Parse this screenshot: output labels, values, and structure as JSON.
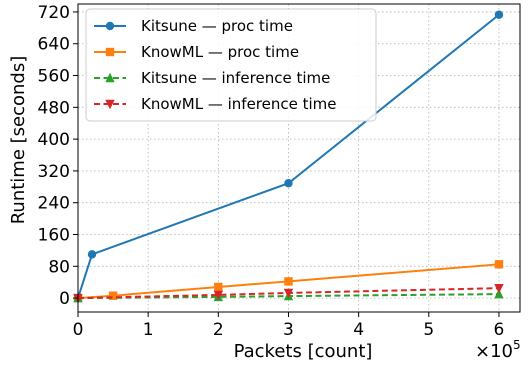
{
  "chart_data": {
    "type": "line",
    "title": "",
    "xlabel": "Packets [count]",
    "ylabel": "Runtime [seconds]",
    "x_multiplier_label": "×10",
    "x_multiplier_exponent": "5",
    "xlim": [
      0,
      6.3
    ],
    "ylim": [
      -35,
      740
    ],
    "xticks": [
      0,
      1,
      2,
      3,
      4,
      5,
      6
    ],
    "xtick_labels": [
      "0",
      "1",
      "2",
      "3",
      "4",
      "5",
      "6"
    ],
    "yticks": [
      0,
      80,
      160,
      240,
      320,
      400,
      480,
      560,
      640,
      720
    ],
    "ytick_labels": [
      "0",
      "80",
      "160",
      "240",
      "320",
      "400",
      "480",
      "560",
      "640",
      "720"
    ],
    "grid": true,
    "legend_position": "top-left",
    "series": [
      {
        "name": "Kitsune — proc time",
        "color": "#1f77b4",
        "marker": "circle",
        "dash": "solid",
        "x": [
          0,
          0.2,
          3,
          6
        ],
        "y": [
          0,
          110,
          289,
          713
        ]
      },
      {
        "name": "KnowML — proc time",
        "color": "#ff7f0e",
        "marker": "square",
        "dash": "solid",
        "x": [
          0,
          0.5,
          2,
          3,
          6
        ],
        "y": [
          0,
          6,
          28,
          42,
          85
        ]
      },
      {
        "name": "Kitsune — inference time",
        "color": "#2ca02c",
        "marker": "triangle-up",
        "dash": "dashed",
        "x": [
          0,
          2,
          3,
          6
        ],
        "y": [
          0,
          3,
          5,
          10
        ]
      },
      {
        "name": "KnowML — inference time",
        "color": "#d62728",
        "marker": "triangle-down",
        "dash": "dashed",
        "x": [
          0,
          2,
          3,
          6
        ],
        "y": [
          0,
          8,
          13,
          25
        ]
      }
    ]
  }
}
